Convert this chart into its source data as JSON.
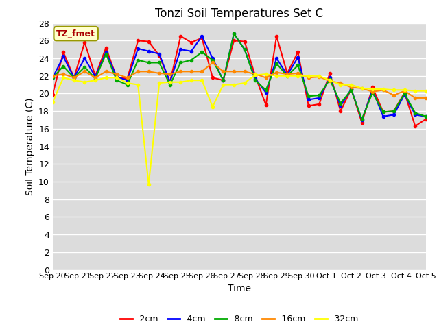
{
  "title": "Tonzi Soil Temperatures Set C",
  "xlabel": "Time",
  "ylabel": "Soil Temperature (C)",
  "ylim": [
    0,
    28
  ],
  "yticks": [
    0,
    2,
    4,
    6,
    8,
    10,
    12,
    14,
    16,
    18,
    20,
    22,
    24,
    26,
    28
  ],
  "x_labels": [
    "Sep 20",
    "Sep 21",
    "Sep 22",
    "Sep 23",
    "Sep 24",
    "Sep 25",
    "Sep 26",
    "Sep 27",
    "Sep 28",
    "Sep 29",
    "Sep 30",
    "Oct 1",
    "Oct 2",
    "Oct 3",
    "Oct 4",
    "Oct 5"
  ],
  "annotation_text": "TZ_fmet",
  "annotation_color": "#aa0000",
  "annotation_bg": "#ffffcc",
  "annotation_edge": "#999900",
  "series": {
    "-2cm": [
      19.9,
      24.7,
      21.8,
      25.8,
      22.0,
      25.2,
      21.8,
      21.7,
      26.0,
      25.9,
      24.3,
      21.3,
      26.5,
      25.8,
      26.3,
      21.8,
      21.5,
      26.0,
      25.9,
      22.0,
      18.7,
      26.5,
      22.3,
      24.7,
      18.6,
      18.8,
      22.3,
      18.0,
      20.5,
      16.7,
      20.7,
      17.9,
      18.0,
      20.1,
      16.3,
      17.1
    ],
    "-4cm": [
      21.8,
      24.2,
      21.8,
      24.0,
      21.9,
      24.7,
      21.9,
      21.5,
      25.1,
      24.8,
      24.5,
      21.3,
      25.0,
      24.8,
      26.5,
      24.0,
      21.5,
      26.8,
      25.0,
      21.7,
      20.1,
      24.0,
      22.1,
      24.1,
      19.3,
      19.5,
      21.8,
      18.6,
      20.5,
      17.0,
      20.4,
      17.4,
      17.6,
      19.9,
      17.6,
      17.4
    ],
    "-8cm": [
      21.8,
      23.1,
      21.8,
      23.0,
      21.7,
      24.5,
      21.5,
      21.0,
      23.8,
      23.5,
      23.5,
      21.0,
      23.5,
      23.8,
      24.7,
      23.8,
      21.5,
      26.8,
      25.0,
      21.5,
      20.4,
      23.4,
      22.0,
      23.2,
      19.7,
      19.8,
      21.6,
      18.9,
      20.4,
      17.1,
      20.1,
      17.9,
      18.0,
      20.0,
      17.8,
      17.4
    ],
    "-16cm": [
      22.0,
      22.2,
      21.8,
      22.5,
      21.8,
      22.5,
      22.2,
      21.8,
      22.5,
      22.5,
      22.3,
      22.2,
      22.5,
      22.5,
      22.5,
      23.5,
      22.5,
      22.5,
      22.5,
      22.2,
      21.8,
      22.4,
      22.2,
      22.3,
      21.8,
      21.9,
      21.4,
      21.2,
      20.7,
      20.6,
      20.2,
      20.4,
      19.8,
      20.3,
      19.5,
      19.5
    ],
    "-32cm": [
      19.0,
      21.8,
      21.5,
      21.3,
      21.5,
      21.8,
      21.8,
      21.2,
      21.0,
      9.7,
      21.2,
      21.3,
      21.3,
      21.5,
      21.5,
      18.5,
      21.0,
      21.0,
      21.2,
      22.1,
      22.2,
      22.0,
      22.0,
      22.0,
      22.0,
      22.0,
      21.5,
      21.0,
      21.0,
      20.6,
      20.5,
      20.5,
      20.4,
      20.4,
      20.3,
      20.3
    ]
  },
  "colors": {
    "-2cm": "#ff0000",
    "-4cm": "#0000ff",
    "-8cm": "#00aa00",
    "-16cm": "#ff8800",
    "-32cm": "#ffff00"
  },
  "bg_color": "#dcdcdc",
  "grid_color": "#ffffff",
  "fig_bg": "#ffffff",
  "linewidth": 1.5,
  "marker": "o",
  "markersize": 3
}
